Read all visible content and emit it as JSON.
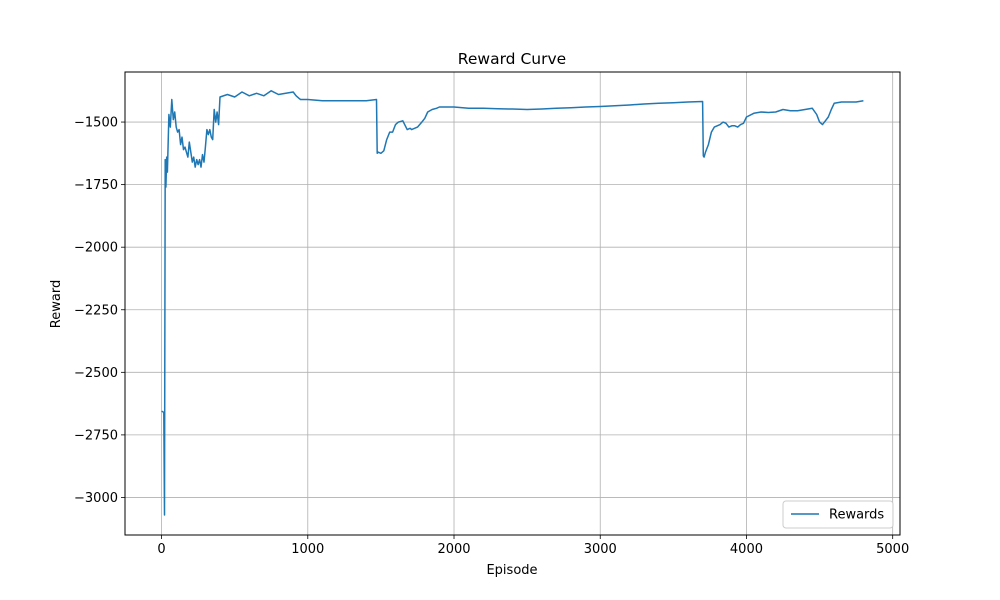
{
  "chart_data": {
    "type": "line",
    "title": "Reward Curve",
    "xlabel": "Episode",
    "ylabel": "Reward",
    "xlim": [
      -250,
      5050
    ],
    "ylim": [
      -3150,
      -1300
    ],
    "xticks": [
      0,
      1000,
      2000,
      3000,
      4000,
      5000
    ],
    "xtick_labels": [
      "0",
      "1000",
      "2000",
      "3000",
      "4000",
      "5000"
    ],
    "yticks": [
      -3000,
      -2750,
      -2500,
      -2250,
      -2000,
      -1750,
      -1500
    ],
    "ytick_labels": [
      "−3000",
      "−2750",
      "−2500",
      "−2250",
      "−2000",
      "−1750",
      "−1500"
    ],
    "grid": true,
    "legend_position": "lower right",
    "colors": {
      "series": "#1f77b4",
      "grid": "#b0b0b0",
      "axes": "#000000"
    },
    "series": [
      {
        "name": "Rewards",
        "x": [
          0,
          15,
          20,
          25,
          30,
          35,
          40,
          50,
          60,
          70,
          80,
          90,
          100,
          110,
          120,
          130,
          140,
          150,
          160,
          170,
          180,
          190,
          200,
          210,
          220,
          230,
          240,
          250,
          260,
          270,
          280,
          290,
          300,
          310,
          320,
          330,
          340,
          350,
          360,
          370,
          380,
          390,
          400,
          450,
          500,
          550,
          600,
          650,
          700,
          750,
          800,
          850,
          900,
          920,
          940,
          950,
          1000,
          1100,
          1200,
          1300,
          1400,
          1470,
          1475,
          1480,
          1500,
          1520,
          1540,
          1560,
          1580,
          1600,
          1620,
          1650,
          1680,
          1700,
          1710,
          1750,
          1780,
          1800,
          1820,
          1850,
          1880,
          1900,
          1950,
          2000,
          2100,
          2200,
          2300,
          2400,
          2500,
          2600,
          2700,
          2800,
          2900,
          3000,
          3100,
          3200,
          3300,
          3400,
          3500,
          3600,
          3700,
          3705,
          3710,
          3720,
          3740,
          3760,
          3780,
          3800,
          3820,
          3840,
          3860,
          3880,
          3900,
          3920,
          3940,
          3960,
          3980,
          4000,
          4050,
          4100,
          4150,
          4200,
          4250,
          4300,
          4350,
          4400,
          4450,
          4480,
          4500,
          4520,
          4540,
          4560,
          4580,
          4600,
          4650,
          4700,
          4750,
          4800
        ],
        "values": [
          -2655,
          -2660,
          -3070,
          -1650,
          -1760,
          -1640,
          -1700,
          -1470,
          -1520,
          -1410,
          -1490,
          -1460,
          -1520,
          -1540,
          -1530,
          -1590,
          -1560,
          -1610,
          -1600,
          -1620,
          -1640,
          -1580,
          -1620,
          -1660,
          -1640,
          -1680,
          -1650,
          -1670,
          -1650,
          -1680,
          -1630,
          -1660,
          -1600,
          -1530,
          -1550,
          -1530,
          -1560,
          -1570,
          -1450,
          -1500,
          -1460,
          -1510,
          -1400,
          -1390,
          -1400,
          -1380,
          -1395,
          -1385,
          -1395,
          -1375,
          -1390,
          -1385,
          -1380,
          -1395,
          -1405,
          -1410,
          -1410,
          -1415,
          -1415,
          -1415,
          -1415,
          -1410,
          -1625,
          -1620,
          -1625,
          -1615,
          -1570,
          -1540,
          -1540,
          -1510,
          -1500,
          -1495,
          -1530,
          -1525,
          -1530,
          -1520,
          -1500,
          -1485,
          -1460,
          -1450,
          -1445,
          -1440,
          -1440,
          -1440,
          -1445,
          -1445,
          -1447,
          -1448,
          -1450,
          -1448,
          -1445,
          -1443,
          -1440,
          -1438,
          -1435,
          -1432,
          -1428,
          -1425,
          -1423,
          -1420,
          -1418,
          -1635,
          -1640,
          -1620,
          -1590,
          -1540,
          -1520,
          -1515,
          -1510,
          -1500,
          -1505,
          -1520,
          -1515,
          -1515,
          -1520,
          -1510,
          -1505,
          -1480,
          -1465,
          -1460,
          -1462,
          -1460,
          -1450,
          -1455,
          -1455,
          -1450,
          -1445,
          -1470,
          -1500,
          -1510,
          -1495,
          -1480,
          -1450,
          -1425,
          -1420,
          -1420,
          -1420,
          -1415
        ]
      }
    ]
  }
}
